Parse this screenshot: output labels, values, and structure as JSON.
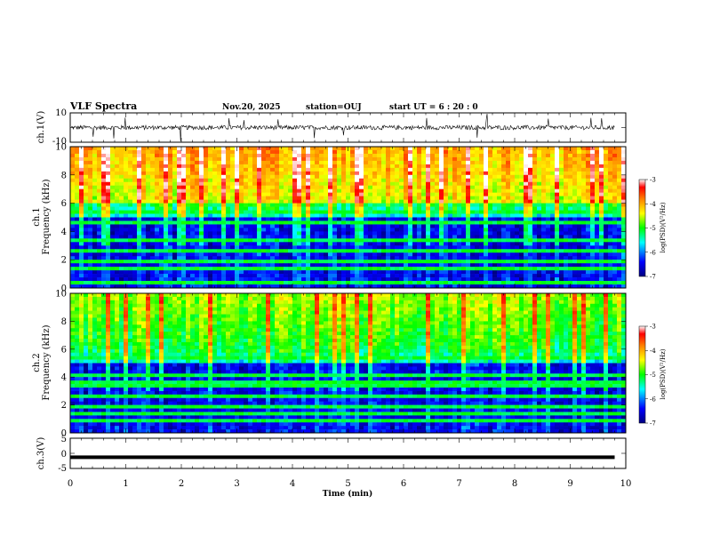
{
  "header": {
    "title": "VLF Spectra",
    "date": "Nov.20, 2025",
    "station": "station=OUJ",
    "start": "start  UT  =   6 : 20 : 0"
  },
  "chart_data": [
    {
      "type": "line",
      "panel": "ch1-waveform",
      "ylabel": "ch.1(V)",
      "ylim": [
        -10,
        10
      ],
      "xlim": [
        0,
        10
      ],
      "yticks": [
        "10",
        "-10"
      ],
      "baseline": 0,
      "x_end": 9.8
    },
    {
      "type": "heatmap",
      "panel": "ch1-spectrogram",
      "ylabel": "ch.1 Frequency (kHz)",
      "ylim": [
        0,
        10
      ],
      "xlim": [
        0,
        10
      ],
      "yticks": [
        "0",
        "2",
        "4",
        "6",
        "8",
        "10"
      ],
      "colorbar": {
        "label": "log(PSD)(V²/Hz)",
        "range": [
          -7,
          -3
        ],
        "ticks": [
          "-3",
          "-4",
          "-5",
          "-6",
          "-7"
        ]
      }
    },
    {
      "type": "heatmap",
      "panel": "ch2-spectrogram",
      "ylabel": "ch.2 Frequency (kHz)",
      "ylim": [
        0,
        10
      ],
      "xlim": [
        0,
        10
      ],
      "yticks": [
        "0",
        "2",
        "4",
        "6",
        "8",
        "10"
      ],
      "colorbar": {
        "label": "log(PSD)(V²/Hz)",
        "range": [
          -7,
          -3
        ],
        "ticks": [
          "-3",
          "-4",
          "-5",
          "-6",
          "-7"
        ]
      }
    },
    {
      "type": "line",
      "panel": "ch3-waveform",
      "ylabel": "ch.3(V)",
      "ylim": [
        -5,
        5
      ],
      "xlim": [
        0,
        10
      ],
      "yticks": [
        "5",
        "0",
        "-5"
      ],
      "baseline": -1.3,
      "x_end": 9.8
    }
  ],
  "xaxis": {
    "label": "Time (min)",
    "ticks": [
      "0",
      "1",
      "2",
      "3",
      "4",
      "5",
      "6",
      "7",
      "8",
      "9",
      "10"
    ]
  }
}
